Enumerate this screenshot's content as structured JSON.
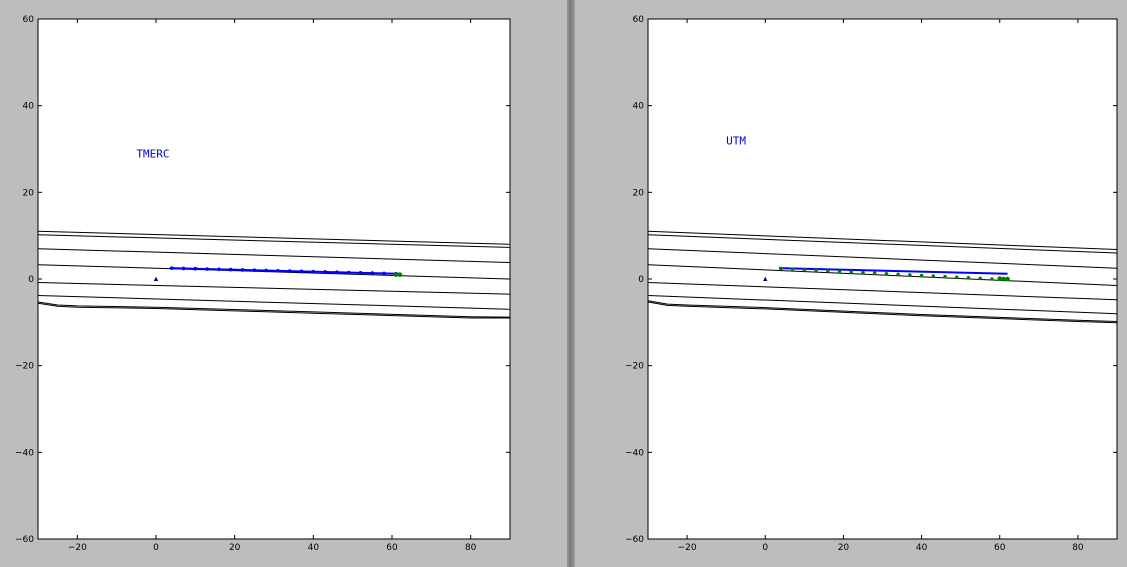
{
  "chart_data": [
    {
      "type": "line",
      "annotation": "TMERC",
      "annotation_color": "#0000cc",
      "annotation_at": [
        -5,
        28
      ],
      "xlim": [
        -30,
        90
      ],
      "ylim": [
        -60,
        60
      ],
      "xticks": [
        -20,
        0,
        20,
        40,
        60,
        80
      ],
      "yticks": [
        -60,
        -40,
        -20,
        0,
        20,
        40,
        60
      ],
      "xtick_labels": [
        "−20",
        "0",
        "20",
        "40",
        "60",
        "80"
      ],
      "ytick_labels": [
        "−60",
        "−40",
        "−20",
        "0",
        "20",
        "40",
        "60"
      ],
      "grid": false,
      "contours": [
        {
          "x": [
            -30,
            90
          ],
          "y": [
            11,
            8
          ]
        },
        {
          "x": [
            -30,
            90
          ],
          "y": [
            10.2,
            7.3
          ]
        },
        {
          "x": [
            -30,
            90
          ],
          "y": [
            7,
            3.8
          ]
        },
        {
          "x": [
            -30,
            90
          ],
          "y": [
            3.3,
            0
          ]
        },
        {
          "x": [
            -30,
            90
          ],
          "y": [
            -0.8,
            -3.5
          ]
        },
        {
          "x": [
            -30,
            90
          ],
          "y": [
            -3.8,
            -7
          ]
        },
        {
          "x": [
            -30,
            -25,
            -20,
            0,
            40,
            80,
            90
          ],
          "y": [
            -5.3,
            -6.0,
            -6.2,
            -6.5,
            -7.6,
            -8.7,
            -8.8
          ]
        },
        {
          "x": [
            -30,
            -25,
            -20,
            0,
            40,
            80,
            90
          ],
          "y": [
            -5.6,
            -6.3,
            -6.5,
            -6.8,
            -7.9,
            -9.0,
            -9.0
          ]
        }
      ],
      "track_line": {
        "color": "#0000ff",
        "x": [
          3.5,
          62
        ],
        "y": [
          2.5,
          1.2
        ]
      },
      "track_points": {
        "color": "#0000ff",
        "x": [
          4,
          7,
          10,
          13,
          16,
          19,
          22,
          25,
          28,
          31,
          34,
          37,
          40,
          43,
          46,
          49,
          52,
          55,
          58,
          61
        ],
        "y": [
          2.5,
          2.43,
          2.37,
          2.3,
          2.23,
          2.17,
          2.1,
          2.03,
          1.97,
          1.9,
          1.83,
          1.77,
          1.7,
          1.63,
          1.57,
          1.5,
          1.43,
          1.37,
          1.3,
          1.23
        ]
      },
      "green_points": {
        "color": "#008000",
        "x": [
          61,
          62
        ],
        "y": [
          1.0,
          1.0
        ]
      },
      "origin_marker": {
        "color": "#000080",
        "x": 0,
        "y": 0
      }
    },
    {
      "type": "line",
      "annotation": "UTM",
      "annotation_color": "#0000cc",
      "annotation_at": [
        -10,
        31
      ],
      "xlim": [
        -30,
        90
      ],
      "ylim": [
        -60,
        60
      ],
      "xticks": [
        -20,
        0,
        20,
        40,
        60,
        80
      ],
      "yticks": [
        -60,
        -40,
        -20,
        0,
        20,
        40,
        60
      ],
      "xtick_labels": [
        "−20",
        "0",
        "20",
        "40",
        "60",
        "80"
      ],
      "ytick_labels": [
        "−60",
        "−40",
        "−20",
        "0",
        "20",
        "40",
        "60"
      ],
      "grid": false,
      "contours": [
        {
          "x": [
            -30,
            90
          ],
          "y": [
            11,
            6.8
          ]
        },
        {
          "x": [
            -30,
            90
          ],
          "y": [
            10.2,
            6.0
          ]
        },
        {
          "x": [
            -30,
            90
          ],
          "y": [
            7,
            2.5
          ]
        },
        {
          "x": [
            -30,
            90
          ],
          "y": [
            3.3,
            -1.5
          ]
        },
        {
          "x": [
            -30,
            90
          ],
          "y": [
            -0.8,
            -4.8
          ]
        },
        {
          "x": [
            -30,
            90
          ],
          "y": [
            -3.8,
            -8.0
          ]
        },
        {
          "x": [
            -30,
            -25,
            -20,
            0,
            40,
            80,
            90
          ],
          "y": [
            -5.0,
            -5.8,
            -6.0,
            -6.6,
            -8.2,
            -9.5,
            -9.8
          ]
        },
        {
          "x": [
            -30,
            -25,
            -20,
            0,
            40,
            80,
            90
          ],
          "y": [
            -5.3,
            -6.1,
            -6.3,
            -6.9,
            -8.5,
            -9.8,
            -10.1
          ]
        }
      ],
      "track_line": {
        "color": "#0000ff",
        "x": [
          3.5,
          62
        ],
        "y": [
          2.5,
          1.2
        ]
      },
      "track_points": {
        "color": "#008000",
        "x": [
          4,
          7,
          10,
          13,
          16,
          19,
          22,
          25,
          28,
          31,
          34,
          37,
          40,
          43,
          46,
          49,
          52,
          55,
          58,
          61
        ],
        "y": [
          2.4,
          2.27,
          2.13,
          2.0,
          1.87,
          1.73,
          1.6,
          1.47,
          1.33,
          1.2,
          1.07,
          0.93,
          0.8,
          0.67,
          0.53,
          0.4,
          0.27,
          0.13,
          0.0,
          -0.13
        ]
      },
      "green_points": {
        "color": "#008000",
        "x": [
          60,
          61,
          62
        ],
        "y": [
          0.1,
          0.0,
          0.0
        ]
      },
      "origin_marker": {
        "color": "#000080",
        "x": 0,
        "y": 0
      }
    }
  ]
}
